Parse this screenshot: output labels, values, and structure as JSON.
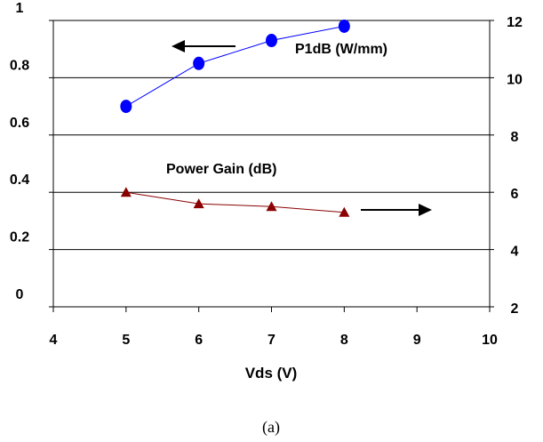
{
  "chart_data": {
    "type": "line",
    "x": [
      5,
      6,
      7,
      8
    ],
    "xlabel": "Vds (V)",
    "xlim": [
      4,
      10
    ],
    "x_ticks": [
      "4",
      "5",
      "6",
      "7",
      "8",
      "9",
      "10"
    ],
    "ylim_left": [
      0,
      1
    ],
    "y_left_ticks": [
      "0",
      "0.2",
      "0.4",
      "0.6",
      "0.8",
      "1"
    ],
    "ylim_right": [
      2,
      12
    ],
    "y_right_ticks": [
      "2",
      "4",
      "6",
      "8",
      "10",
      "12"
    ],
    "grid": "horizontal",
    "series": [
      {
        "name": "P1dB (W/mm)",
        "axis": "left",
        "marker": "circle",
        "color": "#0000ff",
        "values": [
          0.7,
          0.85,
          0.93,
          0.98
        ]
      },
      {
        "name": "Power Gain (dB)",
        "axis": "right",
        "marker": "triangle",
        "color": "#8b0000",
        "values": [
          6.0,
          5.6,
          5.5,
          5.3
        ]
      }
    ]
  },
  "caption": "(a)"
}
